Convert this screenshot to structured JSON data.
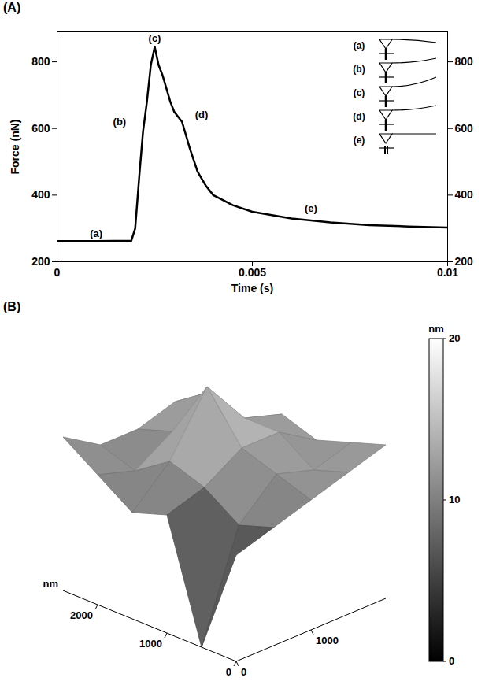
{
  "chart_data": [
    {
      "type": "line",
      "panel_label": "(A)",
      "xlabel": "Time (s)",
      "ylabel": "Force (nN)",
      "x": [
        0,
        0.001,
        0.0019,
        0.002,
        0.0021,
        0.0022,
        0.0023,
        0.0024,
        0.0025,
        0.0026,
        0.0027,
        0.0028,
        0.0029,
        0.003,
        0.0032,
        0.0034,
        0.0036,
        0.0038,
        0.004,
        0.0045,
        0.005,
        0.006,
        0.007,
        0.008,
        0.009,
        0.01
      ],
      "values": [
        262,
        262,
        263,
        300,
        450,
        590,
        680,
        790,
        845,
        790,
        760,
        720,
        680,
        650,
        620,
        540,
        470,
        430,
        400,
        370,
        350,
        330,
        318,
        310,
        306,
        303
      ],
      "color": "#000000",
      "xlim": [
        0,
        0.01
      ],
      "xticks": [
        0,
        0.005,
        0.01
      ],
      "ylim": [
        200,
        890
      ],
      "yticks": [
        200,
        400,
        600,
        800
      ],
      "annotations": [
        {
          "text": "(a)",
          "x": 0.001,
          "y": 285
        },
        {
          "text": "(b)",
          "x": 0.0016,
          "y": 620
        },
        {
          "text": "(c)",
          "x": 0.0025,
          "y": 870
        },
        {
          "text": "(d)",
          "x": 0.0037,
          "y": 640
        },
        {
          "text": "(e)",
          "x": 0.0065,
          "y": 360
        }
      ],
      "inset_labels": [
        "(a)",
        "(b)",
        "(c)",
        "(d)",
        "(e)"
      ]
    },
    {
      "type": "surface",
      "panel_label": "(B)",
      "xlabel": "nm",
      "x": [
        0,
        500,
        1000,
        1500,
        2000,
        2500
      ],
      "y": [
        0,
        500,
        1000,
        1500,
        2000
      ],
      "z": [
        [
          9,
          0,
          10,
          9,
          11,
          13
        ],
        [
          10,
          9,
          11,
          12,
          10,
          11
        ],
        [
          11,
          12,
          13,
          17,
          12,
          11
        ],
        [
          12,
          11,
          13,
          13,
          14,
          12
        ],
        [
          13,
          12,
          11,
          12,
          10,
          9
        ]
      ],
      "xlim": [
        0,
        2500
      ],
      "xticks": [
        0,
        1000,
        2000
      ],
      "ylim": [
        0,
        2000
      ],
      "yticks": [
        0,
        1000
      ],
      "colorbar": {
        "label": "nm",
        "range": [
          0,
          20
        ],
        "ticks": [
          0,
          10,
          20
        ]
      }
    }
  ]
}
